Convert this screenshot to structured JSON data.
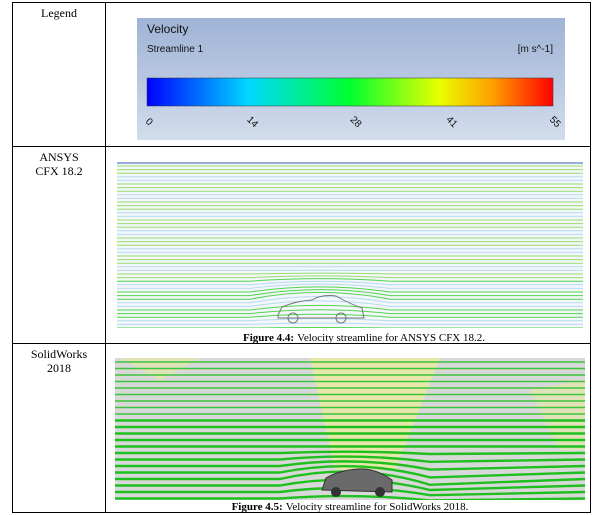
{
  "table": {
    "rows": [
      {
        "label": "Legend",
        "legend": {
          "title": "Velocity",
          "subtitle": "Streamline 1",
          "unit": "[m s^-1]",
          "ticks": [
            0,
            14,
            28,
            41,
            55
          ]
        }
      },
      {
        "label": "ANSYS CFX 18.2",
        "caption_label": "Figure 4.4:",
        "caption_text": "Velocity streamline for ANSYS CFX 18.2."
      },
      {
        "label": "SolidWorks 2018",
        "caption_label": "Figure 4.5:",
        "caption_text": "Velocity streamline for SolidWorks 2018."
      }
    ]
  }
}
